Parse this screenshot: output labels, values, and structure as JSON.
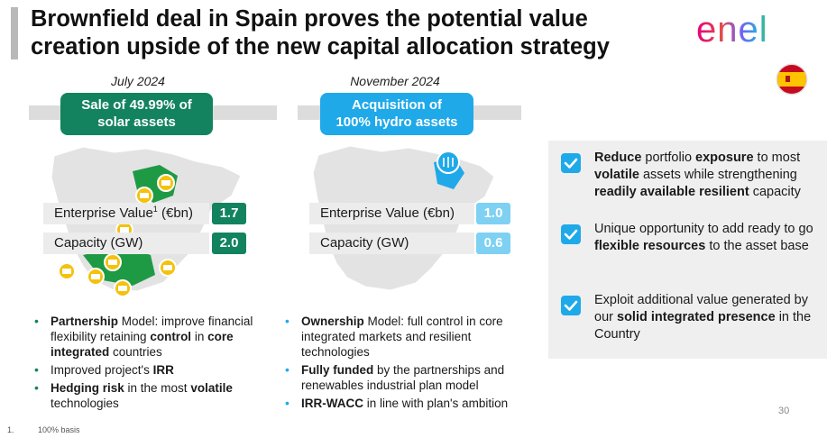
{
  "title": {
    "line1": "Brownfield deal in Spain proves the potential value",
    "line2": "creation upside of the new capital allocation strategy"
  },
  "logo": {
    "text": "enel",
    "icon": "enel-logo-icon"
  },
  "flag": {
    "icon": "spain-flag-icon"
  },
  "left": {
    "period": "July 2024",
    "tag_line1": "Sale of 49.99% of",
    "tag_line2": "solar assets",
    "ev_label": "Enterprise Value",
    "ev_sup": "1",
    "ev_unit": " (€bn)",
    "ev_value": "1.7",
    "cap_label": "Capacity (GW)",
    "cap_value": "2.0",
    "bullets": [
      {
        "b1": "Partnership",
        "t1": " Model: improve financial flexibility retaining ",
        "b2": "control",
        "t2": " in ",
        "b3": "core integrated",
        "t3": " countries"
      },
      {
        "t1": "Improved project's ",
        "b1": "IRR"
      },
      {
        "b1": "Hedging risk",
        "t1": " in the most ",
        "b2": "volatile",
        "t2": " technologies"
      }
    ]
  },
  "middle": {
    "period": "November 2024",
    "tag_line1": "Acquisition of",
    "tag_line2": "100% hydro assets",
    "ev_label": "Enterprise Value (€bn)",
    "ev_value": "1.0",
    "cap_label": "Capacity (GW)",
    "cap_value": "0.6",
    "bullets": [
      {
        "b1": "Ownership",
        "t1": " Model: full control in core integrated markets and resilient technologies"
      },
      {
        "b1": "Fully funded",
        "t1": " by the partnerships and renewables industrial plan model"
      },
      {
        "b1": "IRR-WACC",
        "t1": " in line with plan's ambition"
      }
    ]
  },
  "right": {
    "items": [
      {
        "b1": "Reduce",
        "t1": " portfolio ",
        "b2": "exposure",
        "t2": " to most ",
        "b3": "volatile",
        "t3": " assets while strengthening ",
        "b4": "readily available resilient",
        "t4": " capacity"
      },
      {
        "t1": "Unique opportunity to add ready to go ",
        "b1": "flexible resources",
        "t2": " to the asset base"
      },
      {
        "t1": "Exploit additional value generated by our ",
        "b1": "solid integrated presence",
        "t2": " in the Country"
      }
    ]
  },
  "page_number": "30",
  "footnote": {
    "num": "1.",
    "text": "100% basis"
  },
  "colors": {
    "green": "#13835f",
    "blue": "#1fa9e9",
    "light_blue": "#7ed1f3",
    "gray": "#dcdcdc"
  }
}
